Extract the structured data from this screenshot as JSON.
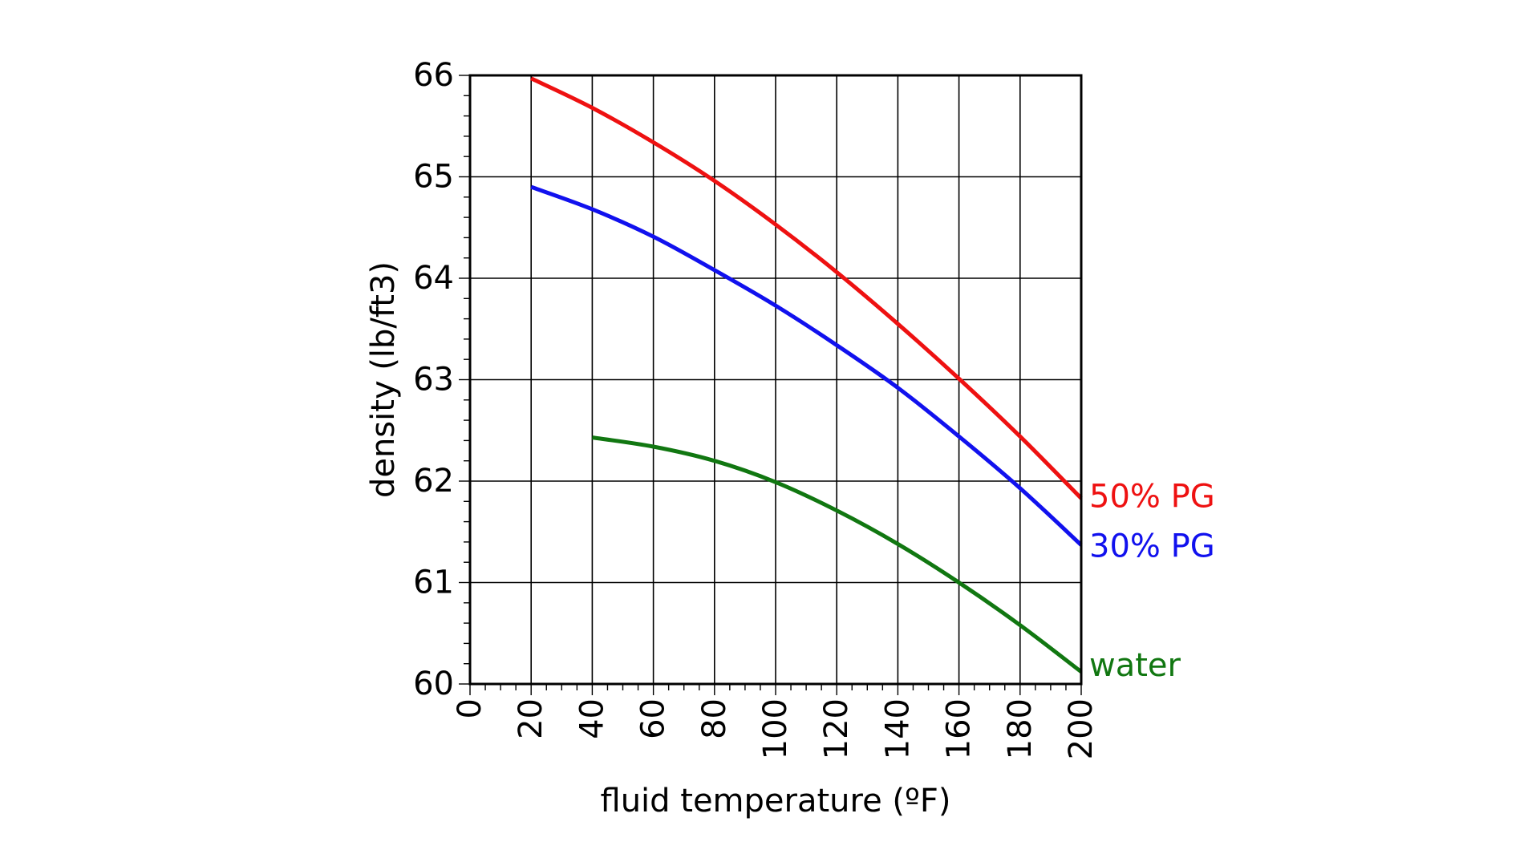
{
  "chart_data": {
    "type": "line",
    "xlabel": "fluid temperature (ºF)",
    "ylabel": "density (lb/ft3)",
    "xlim": [
      0,
      200
    ],
    "ylim": [
      60,
      66
    ],
    "x_ticks": [
      "0",
      "20",
      "40",
      "60",
      "80",
      "100",
      "120",
      "140",
      "160",
      "180",
      "200"
    ],
    "y_ticks": [
      "60",
      "61",
      "62",
      "63",
      "64",
      "65",
      "66"
    ],
    "grid": true,
    "series": [
      {
        "name": "50% PG",
        "color": "#ee1111",
        "x": [
          20,
          40,
          60,
          80,
          100,
          120,
          140,
          160,
          180,
          200
        ],
        "y": [
          65.97,
          65.68,
          65.34,
          64.96,
          64.53,
          64.06,
          63.55,
          63.01,
          62.44,
          61.83
        ]
      },
      {
        "name": "30% PG",
        "color": "#1111ee",
        "x": [
          20,
          40,
          60,
          80,
          100,
          120,
          140,
          160,
          180,
          200
        ],
        "y": [
          64.9,
          64.68,
          64.41,
          64.08,
          63.73,
          63.34,
          62.92,
          62.44,
          61.93,
          61.37
        ]
      },
      {
        "name": "water",
        "color": "#117711",
        "x": [
          40,
          60,
          80,
          100,
          120,
          140,
          160,
          180,
          200
        ],
        "y": [
          62.43,
          62.34,
          62.2,
          61.99,
          61.71,
          61.38,
          61.0,
          60.58,
          60.12
        ]
      }
    ]
  }
}
